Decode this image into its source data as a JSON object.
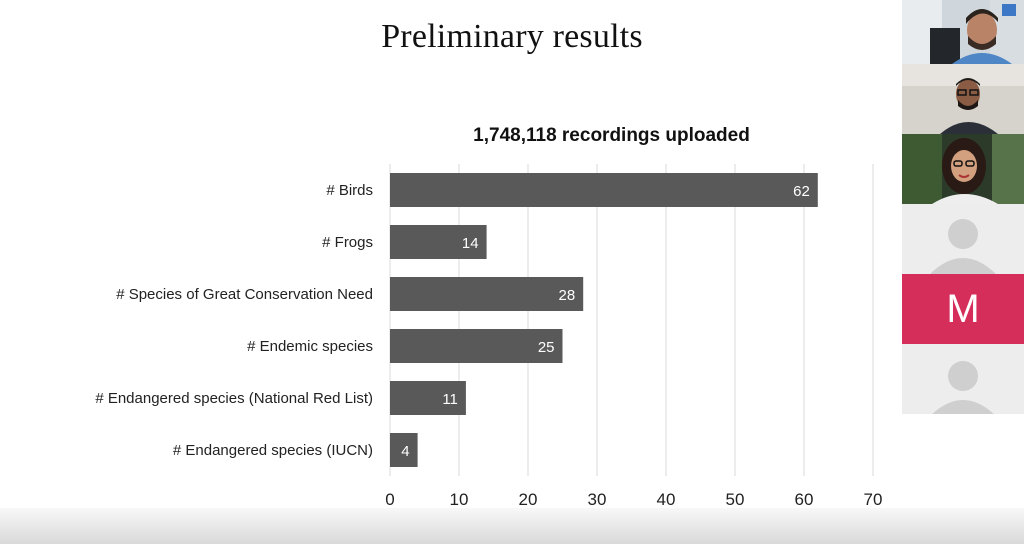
{
  "slide": {
    "title": "Preliminary results"
  },
  "chart_data": {
    "type": "bar",
    "orientation": "horizontal",
    "title": "1,748,118 recordings uploaded",
    "categories": [
      "# Birds",
      "# Frogs",
      "# Species of Great Conservation Need",
      "# Endemic species",
      "# Endangered species (National Red List)",
      "# Endangered species (IUCN)"
    ],
    "values": [
      62,
      14,
      28,
      25,
      11,
      4
    ],
    "data_labels": [
      "62",
      "14",
      "28",
      "25",
      "11",
      "4"
    ],
    "xlim": [
      0,
      70
    ],
    "x_ticks": [
      "0",
      "10",
      "20",
      "30",
      "40",
      "50",
      "60",
      "70"
    ],
    "grid": "vertical",
    "bar_color": "#595959",
    "legend": "none"
  },
  "video_call": {
    "participants": [
      {
        "type": "video",
        "name": ""
      },
      {
        "type": "video",
        "name": ""
      },
      {
        "type": "video",
        "name": ""
      },
      {
        "type": "avatar",
        "name": ""
      },
      {
        "type": "initial",
        "initial": "M",
        "color": "#d62e5a"
      },
      {
        "type": "avatar",
        "name": ""
      }
    ]
  }
}
